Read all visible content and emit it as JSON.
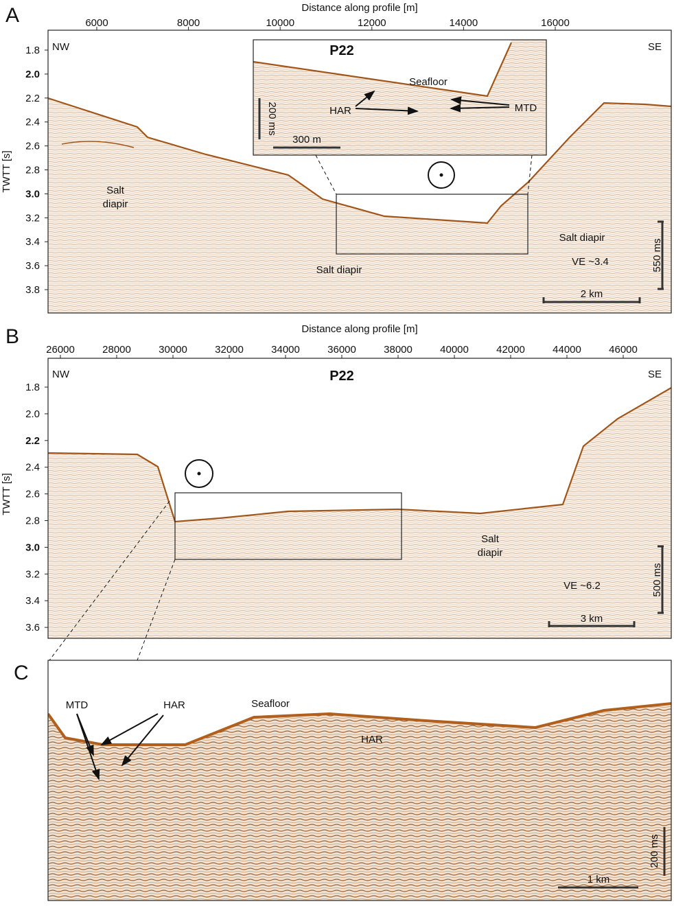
{
  "panels": [
    {
      "letter": "A",
      "x_axis_label": "Distance along profile [m]",
      "y_axis_label": "TWTT [s]",
      "x_ticks": [
        "6000",
        "8000",
        "10000",
        "12000",
        "14000",
        "16000"
      ],
      "y_ticks": [
        "1.8",
        "2.0",
        "2.2",
        "2.4",
        "2.6",
        "2.8",
        "3.0",
        "3.2",
        "3.4",
        "3.6",
        "3.8"
      ],
      "corner_left": "NW",
      "corner_right": "SE",
      "salt_left": [
        "Salt",
        "diapir"
      ],
      "salt_center": "Salt diapir",
      "salt_right": "Salt diapir",
      "ve": "VE ~3.4",
      "vertical_scale": "550 ms",
      "horizontal_scale": "2 km",
      "inset": {
        "title": "P22",
        "seafloor": "Seafloor",
        "har": "HAR",
        "mtd": "MTD",
        "vertical_scale": "200 ms",
        "horizontal_scale": "300 m"
      }
    },
    {
      "letter": "B",
      "x_axis_label": "Distance along profile [m]",
      "y_axis_label": "TWTT [s]",
      "x_ticks": [
        "26000",
        "28000",
        "30000",
        "32000",
        "34000",
        "36000",
        "38000",
        "40000",
        "42000",
        "44000",
        "46000"
      ],
      "y_ticks": [
        "1.8",
        "2.0",
        "2.2",
        "2.4",
        "2.6",
        "2.8",
        "3.0",
        "3.2",
        "3.4",
        "3.6"
      ],
      "corner_left": "NW",
      "corner_right": "SE",
      "title": "P22",
      "salt": [
        "Salt",
        "diapir"
      ],
      "ve": "VE ~6.2",
      "vertical_scale": "500 ms",
      "horizontal_scale": "3 km"
    },
    {
      "letter": "C",
      "mtd": "MTD",
      "har_left": "HAR",
      "seafloor": "Seafloor",
      "har_center": "HAR",
      "vertical_scale": "200 ms",
      "horizontal_scale": "1 km"
    }
  ]
}
